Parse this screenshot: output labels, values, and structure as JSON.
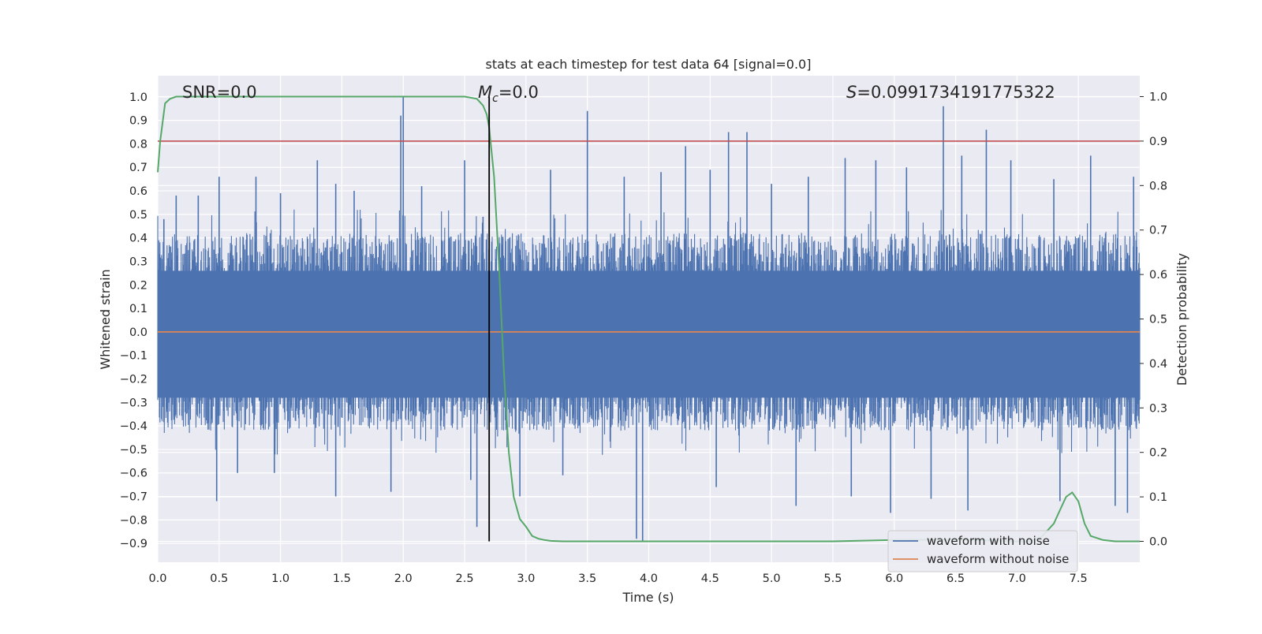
{
  "chart_data": {
    "type": "line",
    "title": "stats at each timestep for test data 64 [signal=0.0]",
    "xlabel": "Time (s)",
    "ylabel_left": "Whitened strain",
    "ylabel_right": "Detection probability",
    "xlim": [
      0.0,
      8.0
    ],
    "ylim_left": [
      -0.98,
      1.09
    ],
    "ylim_right": [
      -0.047,
      1.047
    ],
    "x_ticks": [
      "0.0",
      "0.5",
      "1.0",
      "1.5",
      "2.0",
      "2.5",
      "3.0",
      "3.5",
      "4.0",
      "4.5",
      "5.0",
      "5.5",
      "6.0",
      "6.5",
      "7.0",
      "7.5"
    ],
    "y_left_ticks": [
      "-0.9",
      "-0.8",
      "-0.7",
      "-0.6",
      "-0.5",
      "-0.4",
      "-0.3",
      "-0.2",
      "-0.1",
      "0.0",
      "0.1",
      "0.2",
      "0.3",
      "0.4",
      "0.5",
      "0.6",
      "0.7",
      "0.8",
      "0.9",
      "1.0"
    ],
    "y_right_ticks": [
      "0.0",
      "0.1",
      "0.2",
      "0.3",
      "0.4",
      "0.5",
      "0.6",
      "0.7",
      "0.8",
      "0.9",
      "1.0"
    ],
    "grid": true,
    "legend_position": "bottom-right",
    "annotations": {
      "snr": "SNR=0.0",
      "mc_symbol": "M",
      "mc_subscript": "c",
      "mc_value": "=0.0",
      "s_symbol": "S",
      "s_value": "=0.0991734191775322"
    },
    "series": [
      {
        "name": "waveform with noise",
        "color": "#4c72b0",
        "axis": "left",
        "description_free": true,
        "noise_band_positive": 0.42,
        "noise_band_negative": -0.42,
        "spikes": [
          [
            0.05,
            0.48
          ],
          [
            0.15,
            0.58
          ],
          [
            0.33,
            0.58
          ],
          [
            0.5,
            0.66
          ],
          [
            0.8,
            0.66
          ],
          [
            1.0,
            0.59
          ],
          [
            1.3,
            0.73
          ],
          [
            1.45,
            0.63
          ],
          [
            1.6,
            0.6
          ],
          [
            1.98,
            0.92
          ],
          [
            2.0,
            1.0
          ],
          [
            2.15,
            0.62
          ],
          [
            2.5,
            0.73
          ],
          [
            2.65,
            0.49
          ],
          [
            3.2,
            0.69
          ],
          [
            3.5,
            0.94
          ],
          [
            3.8,
            0.66
          ],
          [
            4.1,
            0.68
          ],
          [
            4.3,
            0.79
          ],
          [
            4.5,
            0.69
          ],
          [
            4.65,
            0.85
          ],
          [
            4.8,
            0.85
          ],
          [
            5.0,
            0.63
          ],
          [
            5.3,
            0.66
          ],
          [
            5.6,
            0.74
          ],
          [
            5.85,
            0.73
          ],
          [
            6.1,
            0.7
          ],
          [
            6.4,
            0.96
          ],
          [
            6.55,
            0.75
          ],
          [
            6.75,
            0.86
          ],
          [
            6.95,
            0.73
          ],
          [
            7.3,
            0.65
          ],
          [
            7.6,
            0.75
          ],
          [
            7.95,
            0.66
          ],
          [
            0.48,
            -0.72
          ],
          [
            0.65,
            -0.6
          ],
          [
            0.95,
            -0.6
          ],
          [
            1.45,
            -0.7
          ],
          [
            1.9,
            -0.68
          ],
          [
            2.55,
            -0.63
          ],
          [
            2.6,
            -0.83
          ],
          [
            2.95,
            -0.7
          ],
          [
            3.3,
            -0.61
          ],
          [
            3.9,
            -0.88
          ],
          [
            3.95,
            -0.89
          ],
          [
            4.55,
            -0.66
          ],
          [
            5.2,
            -0.74
          ],
          [
            5.65,
            -0.7
          ],
          [
            5.97,
            -0.77
          ],
          [
            6.3,
            -0.71
          ],
          [
            6.6,
            -0.76
          ],
          [
            7.35,
            -0.72
          ],
          [
            7.8,
            -0.74
          ],
          [
            7.9,
            -0.77
          ]
        ]
      },
      {
        "name": "waveform without noise",
        "color": "#dd8452",
        "axis": "left",
        "x": [
          0.0,
          8.0
        ],
        "y": [
          0.0,
          0.0
        ]
      },
      {
        "name": "",
        "color": "#55a868",
        "axis": "right",
        "x": [
          0.0,
          0.02,
          0.06,
          0.1,
          0.15,
          0.3,
          1.0,
          2.0,
          2.5,
          2.6,
          2.65,
          2.68,
          2.7,
          2.74,
          2.78,
          2.82,
          2.86,
          2.9,
          2.95,
          3.0,
          3.05,
          3.1,
          3.15,
          3.2,
          3.3,
          3.5,
          4.0,
          5.0,
          5.5,
          6.0,
          6.5,
          6.8,
          7.0,
          7.1,
          7.2,
          7.3,
          7.35,
          7.4,
          7.45,
          7.5,
          7.55,
          7.6,
          7.7,
          7.8,
          8.0
        ],
        "y": [
          0.83,
          0.9,
          0.985,
          0.995,
          1.0,
          1.0,
          1.0,
          1.0,
          1.0,
          0.995,
          0.98,
          0.96,
          0.93,
          0.82,
          0.62,
          0.38,
          0.2,
          0.1,
          0.05,
          0.033,
          0.012,
          0.006,
          0.003,
          0.001,
          0.0,
          0.0,
          0.0,
          0.0,
          0.0,
          0.003,
          0.004,
          0.002,
          0.0,
          0.0,
          0.01,
          0.04,
          0.07,
          0.1,
          0.11,
          0.09,
          0.04,
          0.012,
          0.003,
          0.0,
          0.0
        ]
      },
      {
        "name": "",
        "color": "#c44e52",
        "axis": "right",
        "x": [
          0.0,
          8.0
        ],
        "y": [
          0.9,
          0.9
        ]
      }
    ],
    "vline": {
      "x": 2.7,
      "color": "#000000",
      "y_right": [
        0.0,
        1.0
      ]
    }
  }
}
